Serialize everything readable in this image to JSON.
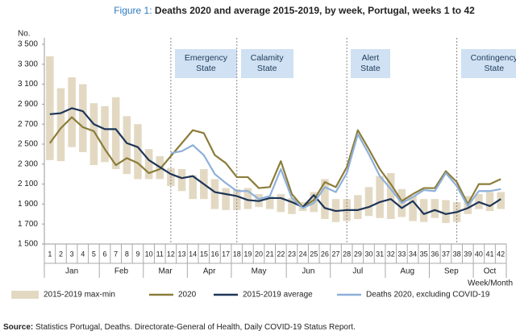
{
  "chart_data": {
    "type": "line",
    "figure_label": "Figure 1:",
    "title": "Deaths 2020 and average 2015-2019, by week, Portugal, weeks 1 to 42",
    "y_label": "No.",
    "x_label": "Week/Month",
    "categories": [
      "1",
      "2",
      "3",
      "4",
      "5",
      "6",
      "7",
      "8",
      "9",
      "10",
      "11",
      "12",
      "13",
      "14",
      "15",
      "16",
      "17",
      "18",
      "19",
      "20",
      "21",
      "22",
      "23",
      "24",
      "25",
      "26",
      "27",
      "28",
      "29",
      "30",
      "31",
      "32",
      "33",
      "34",
      "35",
      "36",
      "37",
      "38",
      "39",
      "40",
      "41",
      "42"
    ],
    "months": [
      "Jan",
      "Feb",
      "Mar",
      "Apr",
      "May",
      "Jun",
      "Jul",
      "Aug",
      "Sep",
      "Oct"
    ],
    "periods": [
      "Emergency State",
      "Calamity State",
      "Alert State",
      "Contingency State"
    ],
    "ylim": [
      1500,
      3500
    ],
    "yticks": [
      {
        "value": 1500,
        "label": "1 500"
      },
      {
        "value": 1700,
        "label": "1 700"
      },
      {
        "value": 1900,
        "label": "1 900"
      },
      {
        "value": 2100,
        "label": "2 100"
      },
      {
        "value": 2300,
        "label": "2 300"
      },
      {
        "value": 2500,
        "label": "2 500"
      },
      {
        "value": 2700,
        "label": "2 700"
      },
      {
        "value": 2900,
        "label": "2 900"
      },
      {
        "value": 3100,
        "label": "3 100"
      },
      {
        "value": 3300,
        "label": "3 300"
      },
      {
        "value": 3500,
        "label": "3 500"
      }
    ],
    "grid": false,
    "series": [
      {
        "name": "2015-2019 max-min",
        "type": "range",
        "color": "#e3d9c3",
        "low": [
          2340,
          2330,
          2470,
          2420,
          2290,
          2320,
          2250,
          2200,
          2150,
          2150,
          2150,
          2080,
          2030,
          1950,
          1950,
          1850,
          1840,
          1840,
          1850,
          1870,
          1850,
          1820,
          1800,
          1830,
          1820,
          1750,
          1720,
          1730,
          1750,
          1780,
          1760,
          1750,
          1770,
          1730,
          1720,
          1760,
          1710,
          1720,
          1800,
          1850,
          1830,
          1850
        ],
        "high": [
          3380,
          3060,
          3170,
          3100,
          2910,
          2880,
          2970,
          2780,
          2700,
          2450,
          2380,
          2260,
          2250,
          2190,
          2250,
          2150,
          2060,
          2050,
          2060,
          2000,
          1980,
          2000,
          1960,
          1920,
          2020,
          2150,
          1950,
          1950,
          1990,
          2070,
          2180,
          2210,
          2050,
          1980,
          1950,
          1950,
          1940,
          1920,
          1980,
          2000,
          2020,
          2020
        ]
      },
      {
        "name": "2020",
        "type": "line",
        "color": "#8b7d3a",
        "values": [
          2510,
          2660,
          2770,
          2670,
          2630,
          2450,
          2290,
          2360,
          2310,
          2210,
          2250,
          2380,
          2510,
          2640,
          2610,
          2390,
          2310,
          2170,
          2170,
          2060,
          2070,
          2330,
          2000,
          1870,
          1940,
          2120,
          2070,
          2270,
          2640,
          2450,
          2250,
          2100,
          1930,
          2000,
          2060,
          2060,
          2230,
          2120,
          1900,
          2100,
          2100,
          2150
        ]
      },
      {
        "name": "2015-2019 average",
        "type": "line",
        "color": "#1d3557",
        "values": [
          2800,
          2810,
          2860,
          2830,
          2700,
          2650,
          2650,
          2510,
          2470,
          2340,
          2270,
          2200,
          2160,
          2180,
          2100,
          2020,
          2000,
          1980,
          1940,
          1930,
          1960,
          1960,
          1920,
          1870,
          1990,
          1860,
          1830,
          1840,
          1840,
          1870,
          1920,
          1950,
          1860,
          1930,
          1800,
          1840,
          1800,
          1820,
          1860,
          1920,
          1880,
          1950
        ]
      },
      {
        "name": "Deaths 2020, excluding COVID-19",
        "type": "line",
        "color": "#8eb0d9",
        "values": [
          null,
          null,
          null,
          null,
          null,
          null,
          null,
          null,
          null,
          null,
          null,
          2410,
          2430,
          2490,
          2390,
          2200,
          2110,
          2030,
          2030,
          1950,
          1980,
          2250,
          1960,
          1860,
          1910,
          2070,
          2020,
          2210,
          2600,
          2400,
          2180,
          2050,
          1910,
          1970,
          2040,
          2030,
          2210,
          2080,
          1880,
          2030,
          2030,
          2050
        ]
      }
    ],
    "source_label": "Source:",
    "source": "Statistics Portugal, Deaths. Directorate-General of Health, Daily COVID-19 Status Report."
  }
}
